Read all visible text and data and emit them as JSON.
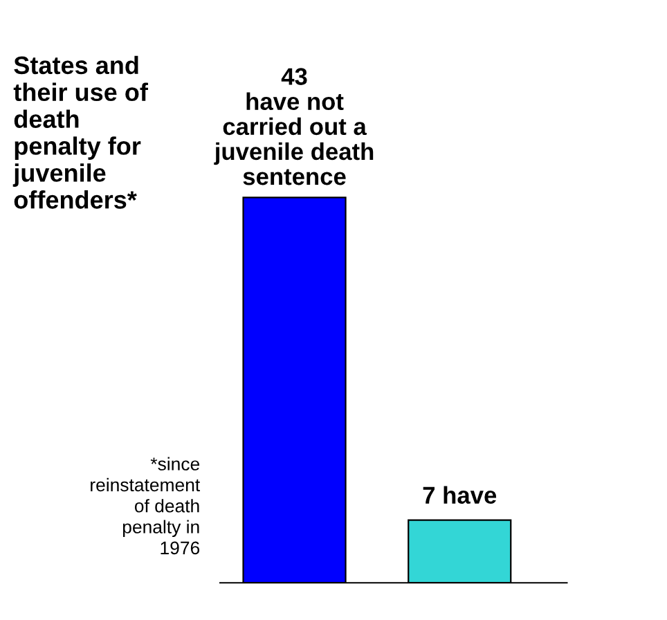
{
  "chart_data": {
    "type": "bar",
    "title": "States and\ntheir use of\ndeath\npenalty for\njuvenile\noffenders*",
    "categories": [
      null,
      null
    ],
    "values": [
      43,
      7
    ],
    "colors": [
      "#0000ff",
      "#33d6d6"
    ],
    "value_labels": [
      "43\nhave not\ncarried out a\njuvenile death\nsentence",
      "7 have"
    ],
    "annotations": [
      "*since\nreinstatement\nof death\npenalty in\n1976"
    ],
    "tick_labels": false
  }
}
